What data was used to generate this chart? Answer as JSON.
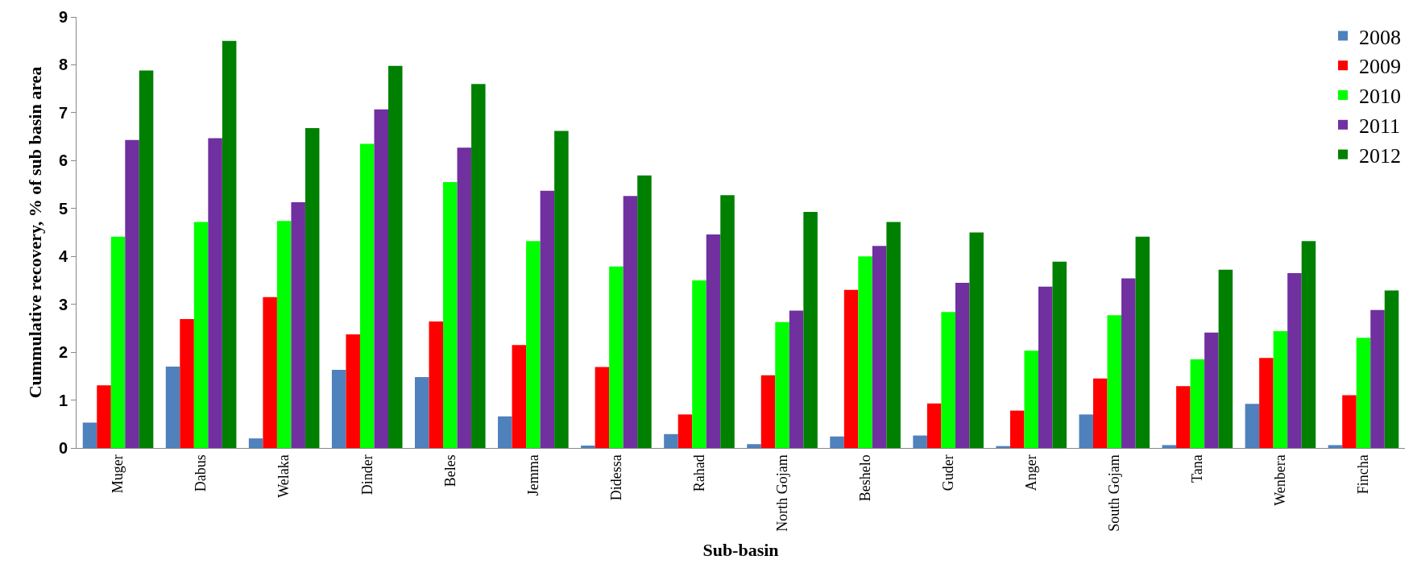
{
  "chart_data": {
    "type": "bar",
    "xlabel": "Sub-basin",
    "ylabel": "Cummulative recovery, % of sub basin area",
    "categories": [
      "Muger",
      "Dabus",
      "Welaka",
      "Dinder",
      "Beles",
      "Jemma",
      "Didessa",
      "Rahad",
      "North Gojam",
      "Beshelo",
      "Guder",
      "Anger",
      "South Gojam",
      "Tana",
      "Wenbera",
      "Fincha"
    ],
    "series": [
      {
        "name": "2008",
        "color": "#4f81bd",
        "values": [
          0.53,
          1.7,
          0.2,
          1.63,
          1.48,
          0.66,
          0.05,
          0.29,
          0.08,
          0.24,
          0.26,
          0.04,
          0.7,
          0.06,
          0.92,
          0.06
        ]
      },
      {
        "name": "2009",
        "color": "#ff0000",
        "values": [
          1.31,
          2.69,
          3.15,
          2.37,
          2.64,
          2.15,
          1.69,
          0.7,
          1.52,
          3.3,
          0.93,
          0.78,
          1.45,
          1.29,
          1.88,
          1.1
        ]
      },
      {
        "name": "2010",
        "color": "#00ff00",
        "values": [
          4.41,
          4.72,
          4.74,
          6.35,
          5.55,
          4.32,
          3.79,
          3.5,
          2.63,
          4.0,
          2.84,
          2.03,
          2.77,
          1.85,
          2.44,
          2.3
        ]
      },
      {
        "name": "2011",
        "color": "#7030a0",
        "values": [
          6.43,
          6.47,
          5.13,
          7.07,
          6.27,
          5.37,
          5.26,
          4.46,
          2.87,
          4.22,
          3.45,
          3.37,
          3.54,
          2.41,
          3.65,
          2.88
        ]
      },
      {
        "name": "2012",
        "color": "#008000",
        "values": [
          7.88,
          8.5,
          6.68,
          7.98,
          7.6,
          6.62,
          5.69,
          5.28,
          4.93,
          4.72,
          4.5,
          3.89,
          4.41,
          3.72,
          4.32,
          3.29
        ]
      }
    ],
    "ylim": [
      0,
      9
    ],
    "yticks": [
      0,
      1,
      2,
      3,
      4,
      5,
      6,
      7,
      8,
      9
    ],
    "grid": false,
    "legend": "top right"
  }
}
